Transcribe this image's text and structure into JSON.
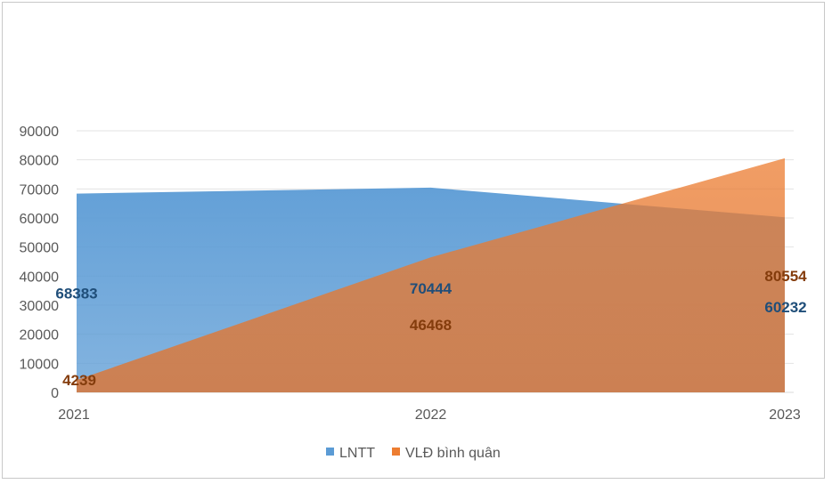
{
  "chart_data": {
    "type": "area",
    "categories": [
      "2021",
      "2022",
      "2023"
    ],
    "series": [
      {
        "name": "LNTT",
        "values": [
          68383,
          70444,
          60232
        ],
        "color": "#5b9bd5",
        "label_color": "#1f4e79"
      },
      {
        "name": "VLĐ  bình quân",
        "values": [
          4239,
          46468,
          80554
        ],
        "color": "#ed7d31",
        "label_color": "#843c0c"
      }
    ],
    "ylim": [
      0,
      90000
    ],
    "yticks": [
      "0",
      "10000",
      "20000",
      "30000",
      "40000",
      "50000",
      "60000",
      "70000",
      "80000",
      "90000"
    ],
    "grid": true,
    "legend": "bottom"
  }
}
